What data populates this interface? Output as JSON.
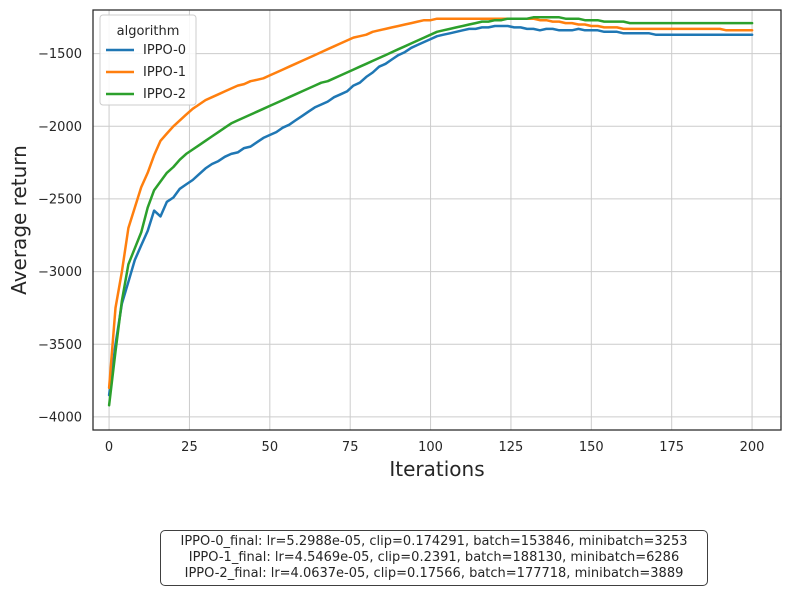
{
  "chart_data": {
    "type": "line",
    "title": "",
    "xlabel": "Iterations",
    "ylabel": "Average return",
    "xlim": [
      -5,
      209
    ],
    "ylim": [
      -4090,
      -1200
    ],
    "xticks": [
      0,
      25,
      50,
      75,
      100,
      125,
      150,
      175,
      200
    ],
    "yticks": [
      -4000,
      -3500,
      -3000,
      -2500,
      -2000,
      -1500
    ],
    "grid": true,
    "legend": {
      "title": "algorithm",
      "placement": "top-left"
    },
    "series": [
      {
        "name": "IPPO-0",
        "color": "#1f77b4",
        "x": [
          0,
          2,
          4,
          6,
          8,
          10,
          12,
          14,
          16,
          18,
          20,
          22,
          24,
          26,
          28,
          30,
          32,
          34,
          36,
          38,
          40,
          42,
          44,
          46,
          48,
          50,
          52,
          54,
          56,
          58,
          60,
          62,
          64,
          66,
          68,
          70,
          72,
          74,
          76,
          78,
          80,
          82,
          84,
          86,
          88,
          90,
          92,
          94,
          96,
          98,
          100,
          102,
          104,
          106,
          108,
          110,
          112,
          114,
          116,
          118,
          120,
          122,
          124,
          126,
          128,
          130,
          132,
          134,
          136,
          138,
          140,
          142,
          144,
          146,
          148,
          150,
          152,
          154,
          156,
          158,
          160,
          162,
          164,
          166,
          168,
          170,
          172,
          174,
          176,
          178,
          180,
          182,
          184,
          186,
          188,
          190,
          192,
          194,
          196,
          198,
          200
        ],
        "values": [
          -3850,
          -3500,
          -3220,
          -3070,
          -2920,
          -2820,
          -2720,
          -2580,
          -2620,
          -2520,
          -2490,
          -2430,
          -2400,
          -2370,
          -2330,
          -2290,
          -2260,
          -2240,
          -2210,
          -2190,
          -2180,
          -2150,
          -2140,
          -2110,
          -2080,
          -2060,
          -2040,
          -2010,
          -1990,
          -1960,
          -1930,
          -1900,
          -1870,
          -1850,
          -1830,
          -1800,
          -1780,
          -1760,
          -1720,
          -1700,
          -1660,
          -1630,
          -1590,
          -1570,
          -1540,
          -1510,
          -1490,
          -1460,
          -1440,
          -1420,
          -1400,
          -1380,
          -1370,
          -1360,
          -1350,
          -1340,
          -1330,
          -1330,
          -1320,
          -1320,
          -1310,
          -1310,
          -1310,
          -1320,
          -1320,
          -1330,
          -1330,
          -1340,
          -1330,
          -1330,
          -1340,
          -1340,
          -1340,
          -1330,
          -1340,
          -1340,
          -1340,
          -1350,
          -1350,
          -1350,
          -1360,
          -1360,
          -1360,
          -1360,
          -1360,
          -1370,
          -1370,
          -1370,
          -1370,
          -1370,
          -1370,
          -1370,
          -1370,
          -1370,
          -1370,
          -1370,
          -1370,
          -1370,
          -1370,
          -1370,
          -1370
        ]
      },
      {
        "name": "IPPO-1",
        "color": "#ff7f0e",
        "x": [
          0,
          2,
          4,
          6,
          8,
          10,
          12,
          14,
          16,
          18,
          20,
          22,
          24,
          26,
          28,
          30,
          32,
          34,
          36,
          38,
          40,
          42,
          44,
          46,
          48,
          50,
          52,
          54,
          56,
          58,
          60,
          62,
          64,
          66,
          68,
          70,
          72,
          74,
          76,
          78,
          80,
          82,
          84,
          86,
          88,
          90,
          92,
          94,
          96,
          98,
          100,
          102,
          104,
          106,
          108,
          110,
          112,
          114,
          116,
          118,
          120,
          122,
          124,
          126,
          128,
          130,
          132,
          134,
          136,
          138,
          140,
          142,
          144,
          146,
          148,
          150,
          152,
          154,
          156,
          158,
          160,
          162,
          164,
          166,
          168,
          170,
          172,
          174,
          176,
          178,
          180,
          182,
          184,
          186,
          188,
          190,
          192,
          194,
          196,
          198,
          200
        ],
        "values": [
          -3800,
          -3250,
          -3000,
          -2700,
          -2560,
          -2420,
          -2320,
          -2200,
          -2100,
          -2050,
          -2000,
          -1960,
          -1920,
          -1880,
          -1850,
          -1820,
          -1800,
          -1780,
          -1760,
          -1740,
          -1720,
          -1710,
          -1690,
          -1680,
          -1670,
          -1650,
          -1630,
          -1610,
          -1590,
          -1570,
          -1550,
          -1530,
          -1510,
          -1490,
          -1470,
          -1450,
          -1430,
          -1410,
          -1390,
          -1380,
          -1370,
          -1350,
          -1340,
          -1330,
          -1320,
          -1310,
          -1300,
          -1290,
          -1280,
          -1270,
          -1270,
          -1260,
          -1260,
          -1260,
          -1260,
          -1260,
          -1260,
          -1260,
          -1260,
          -1260,
          -1260,
          -1260,
          -1260,
          -1260,
          -1260,
          -1260,
          -1260,
          -1270,
          -1270,
          -1280,
          -1280,
          -1290,
          -1290,
          -1300,
          -1300,
          -1310,
          -1310,
          -1320,
          -1320,
          -1320,
          -1330,
          -1330,
          -1330,
          -1330,
          -1330,
          -1330,
          -1330,
          -1330,
          -1330,
          -1330,
          -1330,
          -1330,
          -1330,
          -1330,
          -1330,
          -1330,
          -1340,
          -1340,
          -1340,
          -1340,
          -1340
        ]
      },
      {
        "name": "IPPO-2",
        "color": "#2ca02c",
        "x": [
          0,
          2,
          4,
          6,
          8,
          10,
          12,
          14,
          16,
          18,
          20,
          22,
          24,
          26,
          28,
          30,
          32,
          34,
          36,
          38,
          40,
          42,
          44,
          46,
          48,
          50,
          52,
          54,
          56,
          58,
          60,
          62,
          64,
          66,
          68,
          70,
          72,
          74,
          76,
          78,
          80,
          82,
          84,
          86,
          88,
          90,
          92,
          94,
          96,
          98,
          100,
          102,
          104,
          106,
          108,
          110,
          112,
          114,
          116,
          118,
          120,
          122,
          124,
          126,
          128,
          130,
          132,
          134,
          136,
          138,
          140,
          142,
          144,
          146,
          148,
          150,
          152,
          154,
          156,
          158,
          160,
          162,
          164,
          166,
          168,
          170,
          172,
          174,
          176,
          178,
          180,
          182,
          184,
          186,
          188,
          190,
          192,
          194,
          196,
          198,
          200
        ],
        "values": [
          -3920,
          -3550,
          -3200,
          -2950,
          -2840,
          -2730,
          -2560,
          -2440,
          -2380,
          -2320,
          -2280,
          -2230,
          -2190,
          -2160,
          -2130,
          -2100,
          -2070,
          -2040,
          -2010,
          -1980,
          -1960,
          -1940,
          -1920,
          -1900,
          -1880,
          -1860,
          -1840,
          -1820,
          -1800,
          -1780,
          -1760,
          -1740,
          -1720,
          -1700,
          -1690,
          -1670,
          -1650,
          -1630,
          -1610,
          -1590,
          -1570,
          -1550,
          -1530,
          -1510,
          -1490,
          -1470,
          -1450,
          -1430,
          -1410,
          -1390,
          -1370,
          -1350,
          -1340,
          -1330,
          -1320,
          -1310,
          -1300,
          -1290,
          -1280,
          -1280,
          -1270,
          -1270,
          -1260,
          -1260,
          -1260,
          -1260,
          -1250,
          -1250,
          -1250,
          -1250,
          -1250,
          -1260,
          -1260,
          -1260,
          -1270,
          -1270,
          -1270,
          -1280,
          -1280,
          -1280,
          -1280,
          -1290,
          -1290,
          -1290,
          -1290,
          -1290,
          -1290,
          -1290,
          -1290,
          -1290,
          -1290,
          -1290,
          -1290,
          -1290,
          -1290,
          -1290,
          -1290,
          -1290,
          -1290,
          -1290,
          -1290
        ]
      }
    ],
    "annotation_lines": [
      "IPPO-0_final: lr=5.2988e-05, clip=0.174291, batch=153846, minibatch=3253",
      "IPPO-1_final: lr=4.5469e-05, clip=0.2391, batch=188130, minibatch=6286",
      "IPPO-2_final: lr=4.0637e-05, clip=0.17566, batch=177718, minibatch=3889"
    ]
  }
}
